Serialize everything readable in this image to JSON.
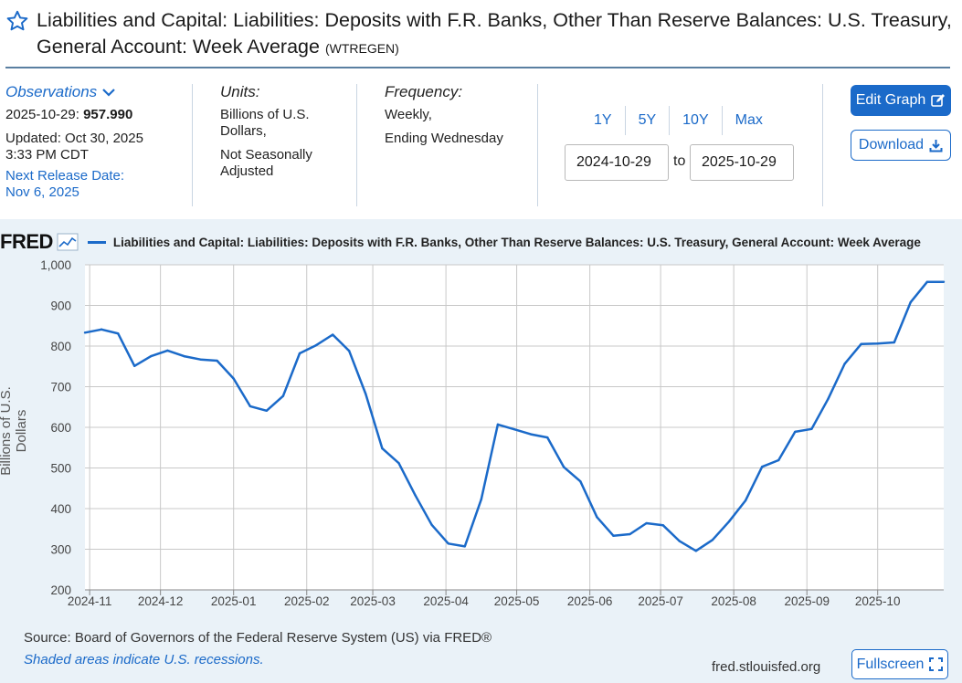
{
  "header": {
    "title": "Liabilities and Capital: Liabilities: Deposits with F.R. Banks, Other Than Reserve Balances: U.S. Treasury, General Account: Week Average",
    "series_id": "(WTREGEN)"
  },
  "observations": {
    "label": "Observations",
    "date": "2025-10-29:",
    "value": "957.990",
    "updated_line1": "Updated: Oct 30, 2025",
    "updated_line2": "3:33 PM CDT",
    "next_release_label": "Next Release Date:",
    "next_release_date": "Nov 6, 2025"
  },
  "units": {
    "label": "Units:",
    "line1": "Billions of U.S.",
    "line2": "Dollars,",
    "line3": "Not Seasonally",
    "line4": "Adjusted"
  },
  "frequency": {
    "label": "Frequency:",
    "line1": "Weekly,",
    "line2": "Ending Wednesday"
  },
  "range": {
    "tabs": [
      "1Y",
      "5Y",
      "10Y",
      "Max"
    ],
    "start": "2024-10-29",
    "to": "to",
    "end": "2025-10-29"
  },
  "buttons": {
    "edit": "Edit Graph",
    "download": "Download",
    "fullscreen": "Fullscreen"
  },
  "graph": {
    "logo": "FRED",
    "legend": "Liabilities and Capital: Liabilities: Deposits with F.R. Banks, Other Than Reserve Balances: U.S. Treasury, General Account: Week Average"
  },
  "footer": {
    "source": "Source: Board of Governors of the Federal Reserve System (US) via FRED®",
    "recession": "Shaded areas indicate U.S. recessions.",
    "url": "fred.stlouisfed.org"
  },
  "colors": {
    "accent": "#1b6ac9",
    "panel_bg": "#eaf2f8",
    "title_rule": "#5a7fa1"
  },
  "chart_data": {
    "type": "line",
    "title": "Liabilities and Capital: Liabilities: Deposits with F.R. Banks, Other Than Reserve Balances: U.S. Treasury, General Account: Week Average",
    "ylabel": "Billions of U.S. Dollars",
    "xlabel": "",
    "ylim": [
      200,
      1000
    ],
    "yticks": [
      1000,
      900,
      800,
      700,
      600,
      500,
      400,
      300,
      200
    ],
    "ytick_labels": [
      "1,000",
      "900",
      "800",
      "700",
      "600",
      "500",
      "400",
      "300",
      "200"
    ],
    "xlim": [
      "2024-10-30",
      "2025-10-29"
    ],
    "xticks": [
      {
        "label": "2024-11",
        "date": "2024-11-01"
      },
      {
        "label": "2024-12",
        "date": "2024-12-01"
      },
      {
        "label": "2025-01",
        "date": "2025-01-01"
      },
      {
        "label": "2025-02",
        "date": "2025-02-01"
      },
      {
        "label": "2025-03",
        "date": "2025-03-01"
      },
      {
        "label": "2025-04",
        "date": "2025-04-01"
      },
      {
        "label": "2025-05",
        "date": "2025-05-01"
      },
      {
        "label": "2025-06",
        "date": "2025-06-01"
      },
      {
        "label": "2025-07",
        "date": "2025-07-01"
      },
      {
        "label": "2025-08",
        "date": "2025-08-01"
      },
      {
        "label": "2025-09",
        "date": "2025-09-01"
      },
      {
        "label": "2025-10",
        "date": "2025-10-01"
      }
    ],
    "series": [
      {
        "name": "WTREGEN",
        "x": [
          "2024-10-30",
          "2024-11-06",
          "2024-11-13",
          "2024-11-20",
          "2024-11-27",
          "2024-12-04",
          "2024-12-11",
          "2024-12-18",
          "2024-12-25",
          "2025-01-01",
          "2025-01-08",
          "2025-01-15",
          "2025-01-22",
          "2025-01-29",
          "2025-02-05",
          "2025-02-12",
          "2025-02-19",
          "2025-02-26",
          "2025-03-05",
          "2025-03-12",
          "2025-03-19",
          "2025-03-26",
          "2025-04-02",
          "2025-04-09",
          "2025-04-16",
          "2025-04-23",
          "2025-04-30",
          "2025-05-07",
          "2025-05-14",
          "2025-05-21",
          "2025-05-28",
          "2025-06-04",
          "2025-06-11",
          "2025-06-18",
          "2025-06-25",
          "2025-07-02",
          "2025-07-09",
          "2025-07-16",
          "2025-07-23",
          "2025-07-30",
          "2025-08-06",
          "2025-08-13",
          "2025-08-20",
          "2025-08-27",
          "2025-09-03",
          "2025-09-10",
          "2025-09-17",
          "2025-09-24",
          "2025-10-01",
          "2025-10-08",
          "2025-10-15",
          "2025-10-22",
          "2025-10-29"
        ],
        "values": [
          833,
          841,
          831,
          751,
          775,
          789,
          775,
          767,
          764,
          720,
          652,
          641,
          677,
          782,
          802,
          828,
          788,
          682,
          548,
          512,
          433,
          360,
          314,
          307,
          423,
          607,
          595,
          583,
          575,
          502,
          467,
          379,
          333,
          337,
          364,
          359,
          320,
          296,
          323,
          368,
          420,
          503,
          519,
          589,
          596,
          670,
          756,
          805,
          806,
          809,
          908,
          957.99,
          957.99
        ]
      }
    ]
  }
}
